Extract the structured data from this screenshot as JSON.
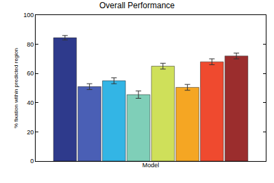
{
  "chart_data": {
    "type": "bar",
    "title": "Overall Performance",
    "x_label": "Model",
    "y_label": "% fixation within predicted region",
    "categories": [
      null,
      null,
      null,
      null,
      null,
      null,
      null,
      null
    ],
    "values": [
      84.5,
      51,
      55,
      45.5,
      65,
      50.5,
      68,
      72
    ],
    "errors": [
      1.5,
      2,
      2,
      2.5,
      2,
      2,
      2,
      2
    ],
    "colors": [
      "#2e3a8c",
      "#4a5fb5",
      "#33b5e5",
      "#7fcfb8",
      "#cfe05a",
      "#f5a623",
      "#ef4a2f",
      "#9b2d2d"
    ],
    "ylim": [
      0,
      100
    ],
    "yticks": [
      0,
      20,
      40,
      60,
      80,
      100
    ],
    "grid": false,
    "tick_labels": "y"
  }
}
